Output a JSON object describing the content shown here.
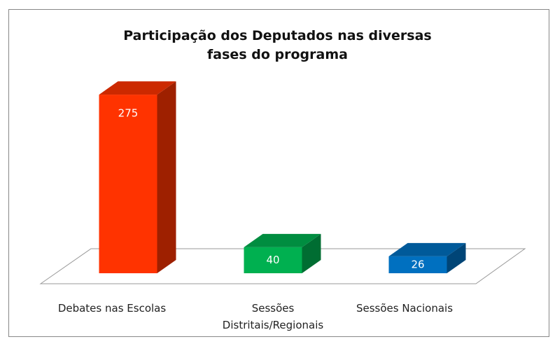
{
  "chart_data": {
    "type": "bar3d",
    "title": "Participação dos Deputados nas diversas fases do programa",
    "categories": [
      "Debates nas Escolas",
      "Sessões Distritais/Regionais",
      "Sessões Nacionais"
    ],
    "values": [
      275,
      40,
      26
    ],
    "colors": [
      "#ff3300",
      "#00b050",
      "#0070c0"
    ]
  }
}
